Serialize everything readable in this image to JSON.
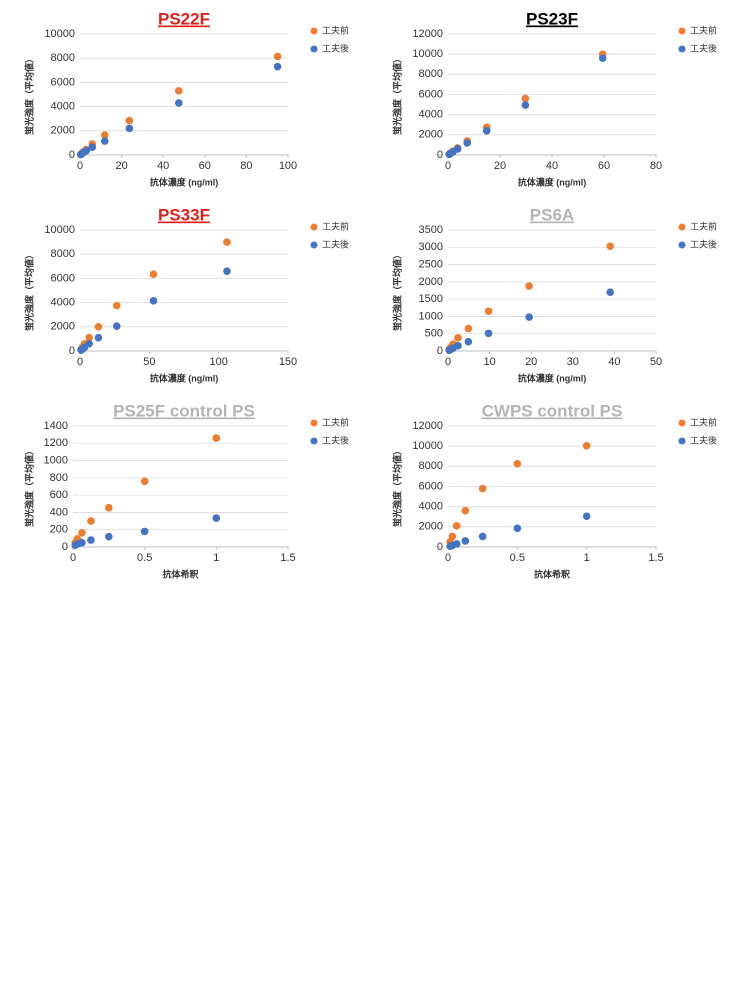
{
  "chart_data": [
    {
      "type": "scatter",
      "title": "PS22F",
      "title_color": "#e0201b",
      "x_label": "抗体濃度 (ng/ml)",
      "y_label": "蛍光強度（平均値）",
      "x": [
        95,
        47.5,
        23.75,
        11.9,
        5.9,
        3,
        1.5,
        0.74,
        0.37
      ],
      "series": [
        {
          "name": "工夫前",
          "color": "#ed7d31",
          "values": [
            8150,
            5300,
            2850,
            1650,
            900,
            450,
            250,
            120,
            60
          ]
        },
        {
          "name": "工夫後",
          "color": "#4472c4",
          "values": [
            7300,
            4300,
            2200,
            1150,
            650,
            350,
            180,
            90,
            40
          ]
        }
      ],
      "xlim": [
        0,
        100
      ],
      "xticks": [
        0,
        20,
        40,
        60,
        80,
        100
      ],
      "ylim": [
        0,
        10000
      ],
      "yticks": [
        0,
        2000,
        4000,
        6000,
        8000,
        10000
      ],
      "grid": true
    },
    {
      "type": "scatter",
      "title": "PS23F",
      "title_color": "#000000",
      "x_label": "抗体濃度 (ng/ml)",
      "y_label": "蛍光強度（平均値）",
      "x": [
        59.5,
        29.75,
        14.9,
        7.4,
        3.7,
        1.9,
        0.93,
        0.46
      ],
      "series": [
        {
          "name": "工夫前",
          "color": "#ed7d31",
          "values": [
            10000,
            5600,
            2750,
            1400,
            700,
            380,
            180,
            90
          ]
        },
        {
          "name": "工夫後",
          "color": "#4472c4",
          "values": [
            9600,
            4950,
            2400,
            1200,
            600,
            300,
            150,
            70
          ]
        }
      ],
      "xlim": [
        0,
        80
      ],
      "xticks": [
        0,
        20,
        40,
        60,
        80
      ],
      "ylim": [
        0,
        12000
      ],
      "yticks": [
        0,
        2000,
        4000,
        6000,
        8000,
        10000,
        12000
      ],
      "grid": true
    },
    {
      "type": "scatter",
      "title": "PS33F",
      "title_color": "#e0201b",
      "x_label": "抗体濃度 (ng/ml)",
      "y_label": "蛍光強度（平均値）",
      "x": [
        106,
        53,
        26.5,
        13.3,
        6.6,
        3.3,
        1.7,
        0.8
      ],
      "series": [
        {
          "name": "工夫前",
          "color": "#ed7d31",
          "values": [
            9000,
            6350,
            3750,
            2000,
            1100,
            600,
            300,
            150
          ]
        },
        {
          "name": "工夫後",
          "color": "#4472c4",
          "values": [
            6600,
            4150,
            2050,
            1100,
            600,
            300,
            150,
            80
          ]
        }
      ],
      "xlim": [
        0,
        150
      ],
      "xticks": [
        0,
        50,
        100,
        150
      ],
      "ylim": [
        0,
        10000
      ],
      "yticks": [
        0,
        2000,
        4000,
        6000,
        8000,
        10000
      ],
      "grid": true
    },
    {
      "type": "scatter",
      "title": "PS6A",
      "title_color": "#b4b4b4",
      "x_label": "抗体濃度 (ng/ml)",
      "y_label": "蛍光強度（平均値）",
      "x": [
        39,
        19.5,
        9.75,
        4.9,
        2.4,
        1.2,
        0.6,
        0.3
      ],
      "series": [
        {
          "name": "工夫前",
          "color": "#ed7d31",
          "values": [
            3030,
            1880,
            1150,
            650,
            380,
            200,
            100,
            50
          ]
        },
        {
          "name": "工夫後",
          "color": "#4472c4",
          "values": [
            1700,
            980,
            510,
            270,
            150,
            80,
            40,
            20
          ]
        }
      ],
      "xlim": [
        0,
        50
      ],
      "xticks": [
        0,
        10,
        20,
        30,
        40,
        50
      ],
      "ylim": [
        0,
        3500
      ],
      "yticks": [
        0,
        500,
        1000,
        1500,
        2000,
        2500,
        3000,
        3500
      ],
      "grid": true
    },
    {
      "type": "scatter",
      "title": "PS25F control PS",
      "title_color": "#b4b4b4",
      "x_label": "抗体希釈",
      "y_label": "蛍光強度（平均値）",
      "x": [
        1,
        0.5,
        0.25,
        0.125,
        0.0625,
        0.03125,
        0.0156
      ],
      "series": [
        {
          "name": "工夫前",
          "color": "#ed7d31",
          "values": [
            1260,
            760,
            455,
            300,
            165,
            95,
            50
          ]
        },
        {
          "name": "工夫後",
          "color": "#4472c4",
          "values": [
            335,
            180,
            120,
            80,
            50,
            35,
            20
          ]
        }
      ],
      "xlim": [
        0,
        1.5
      ],
      "xticks": [
        0,
        0.5,
        1,
        1.5
      ],
      "ylim": [
        0,
        1400
      ],
      "yticks": [
        0,
        200,
        400,
        600,
        800,
        1000,
        1200,
        1400
      ],
      "grid": true
    },
    {
      "type": "scatter",
      "title": "CWPS control PS",
      "title_color": "#b4b4b4",
      "x_label": "抗体希釈",
      "y_label": "蛍光強度（平均値）",
      "x": [
        1,
        0.5,
        0.25,
        0.125,
        0.0625,
        0.03125,
        0.0156
      ],
      "series": [
        {
          "name": "工夫前",
          "color": "#ed7d31",
          "values": [
            10050,
            8250,
            5800,
            3600,
            2100,
            1050,
            500
          ]
        },
        {
          "name": "工夫後",
          "color": "#4472c4",
          "values": [
            3050,
            1850,
            1050,
            600,
            300,
            150,
            80
          ]
        }
      ],
      "xlim": [
        0,
        1.5
      ],
      "xticks": [
        0,
        0.5,
        1,
        1.5
      ],
      "ylim": [
        0,
        12000
      ],
      "yticks": [
        0,
        2000,
        4000,
        6000,
        8000,
        10000,
        12000
      ],
      "grid": true
    }
  ]
}
